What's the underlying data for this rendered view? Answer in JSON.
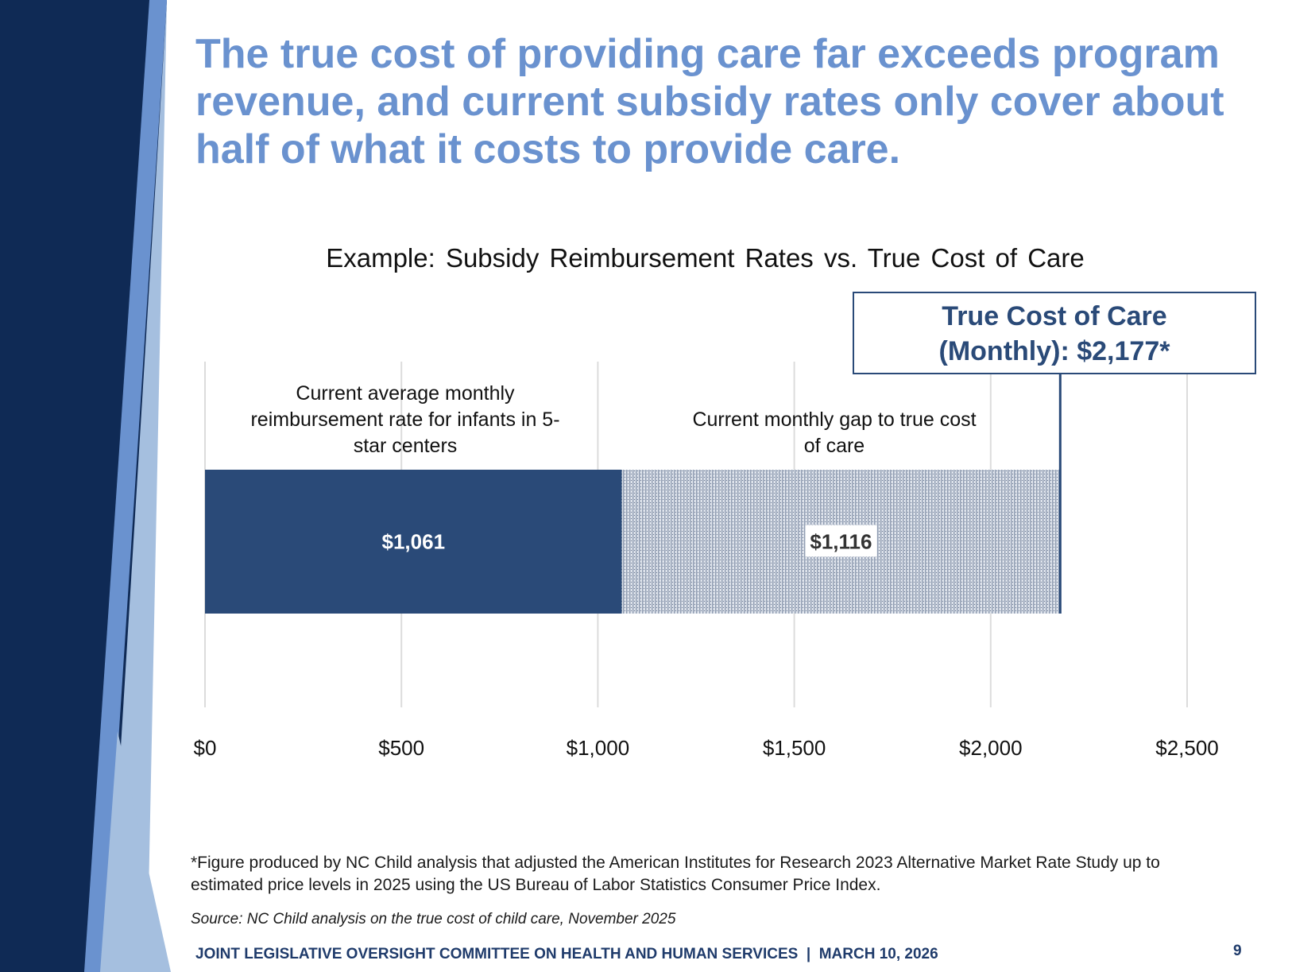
{
  "slide": {
    "title": "The true cost of providing care far exceeds program revenue, and current subsidy rates only cover about half of what it costs to provide care.",
    "footnote": "*Figure produced by NC Child analysis that adjusted the American Institutes for Research 2023 Alternative Market Rate Study up to estimated price levels in 2025 using the US Bureau of Labor Statistics Consumer Price Index.",
    "source": "Source: NC Child analysis on the true cost of child care, November 2025",
    "footer": "JOINT LEGISLATIVE OVERSIGHT COMMITTEE ON HEALTH AND HUMAN SERVICES  |  MARCH 10, 2026",
    "page_number": "9",
    "colors": {
      "title": "#6a92cf",
      "navy": "#0f2a55",
      "bar_primary": "#2a4a78",
      "bar_gap": "#c9d0dc",
      "accent_light": "#a5bfdf"
    }
  },
  "chart_data": {
    "type": "bar",
    "orientation": "horizontal",
    "stacked": true,
    "title": "Example: Subsidy Reimbursement Rates vs. True Cost of Care",
    "series": [
      {
        "name": "Current average monthly reimbursement rate for infants in 5-star centers",
        "value": 1061,
        "data_label": "$1,061"
      },
      {
        "name": "Current monthly gap to true cost of care",
        "value": 1116,
        "data_label": "$1,116"
      }
    ],
    "reference_line": {
      "value": 2177,
      "label_line1": "True Cost of Care",
      "label_line2": "(Monthly): $2,177*"
    },
    "xlim": [
      0,
      2500
    ],
    "x_ticks": [
      0,
      500,
      1000,
      1500,
      2000,
      2500
    ],
    "x_tick_labels": [
      "$0",
      "$500",
      "$1,000",
      "$1,500",
      "$2,000",
      "$2,500"
    ],
    "grid": true,
    "xlabel": "",
    "ylabel": ""
  }
}
